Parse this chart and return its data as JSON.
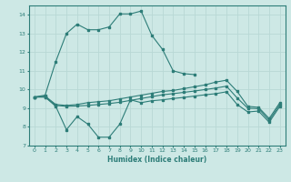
{
  "xlabel": "Humidex (Indice chaleur)",
  "bg_color": "#cde8e5",
  "line_color": "#2d7d78",
  "grid_color": "#b8d8d5",
  "xlim": [
    -0.5,
    23.5
  ],
  "ylim": [
    7,
    14.5
  ],
  "yticks": [
    7,
    8,
    9,
    10,
    11,
    12,
    13,
    14
  ],
  "xticks": [
    0,
    1,
    2,
    3,
    4,
    5,
    6,
    7,
    8,
    9,
    10,
    11,
    12,
    13,
    14,
    15,
    16,
    17,
    18,
    19,
    20,
    21,
    22,
    23
  ],
  "series": [
    {
      "x": [
        0,
        1,
        2,
        3,
        4,
        5,
        6,
        7,
        8,
        9,
        10,
        11,
        12,
        13,
        14,
        15,
        16,
        17,
        18,
        19,
        20
      ],
      "y": [
        9.6,
        9.7,
        11.5,
        13.0,
        13.5,
        13.2,
        13.2,
        13.35,
        14.05,
        14.05,
        14.2,
        12.9,
        12.15,
        11.0,
        10.85,
        10.8,
        null,
        null,
        null,
        null,
        null
      ]
    },
    {
      "x": [
        0,
        1,
        2,
        3,
        4,
        5,
        6,
        7,
        8,
        9,
        10,
        11,
        12,
        13,
        14,
        15,
        16,
        17,
        18,
        19,
        20,
        21,
        22,
        23
      ],
      "y": [
        9.6,
        9.65,
        9.2,
        9.15,
        9.2,
        9.3,
        9.35,
        9.4,
        9.5,
        9.6,
        9.7,
        9.8,
        9.9,
        9.95,
        10.05,
        10.15,
        10.25,
        10.4,
        10.5,
        9.9,
        9.1,
        9.05,
        8.45,
        9.3
      ]
    },
    {
      "x": [
        0,
        1,
        2,
        3,
        4,
        5,
        6,
        7,
        8,
        9,
        10,
        11,
        12,
        13,
        14,
        15,
        16,
        17,
        18,
        19,
        20,
        21,
        22,
        23
      ],
      "y": [
        9.6,
        9.6,
        9.15,
        9.1,
        9.12,
        9.15,
        9.2,
        9.25,
        9.32,
        9.42,
        9.52,
        9.62,
        9.72,
        9.78,
        9.85,
        9.92,
        10.0,
        10.08,
        10.18,
        9.55,
        9.0,
        8.98,
        8.35,
        9.2
      ]
    },
    {
      "x": [
        0,
        1,
        2,
        3,
        4,
        5,
        6,
        7,
        8,
        9,
        10,
        11,
        12,
        13,
        14,
        15,
        16,
        17,
        18,
        19,
        20,
        21,
        22,
        23
      ],
      "y": [
        9.6,
        9.6,
        9.1,
        7.85,
        8.55,
        8.15,
        7.45,
        7.45,
        8.15,
        9.45,
        9.3,
        9.4,
        9.45,
        9.52,
        9.58,
        9.65,
        9.72,
        9.78,
        9.88,
        9.2,
        8.8,
        8.85,
        8.25,
        9.1
      ]
    }
  ]
}
